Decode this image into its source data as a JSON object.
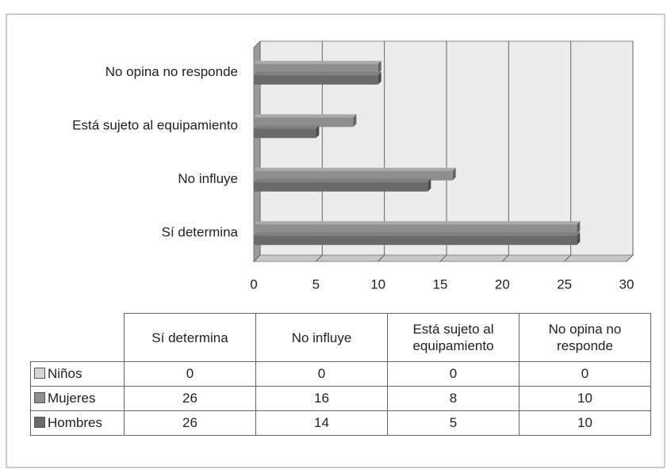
{
  "chart_data": {
    "type": "bar",
    "orientation": "horizontal",
    "categories": [
      "Sí determina",
      "No influye",
      "Está sujeto al equipamiento",
      "No opina no responde"
    ],
    "series": [
      {
        "name": "Niños",
        "color": "#d4d4d4",
        "values": [
          0,
          0,
          0,
          0
        ]
      },
      {
        "name": "Mujeres",
        "color": "#8e8e8e",
        "values": [
          26,
          16,
          8,
          10
        ]
      },
      {
        "name": "Hombres",
        "color": "#6a6a6a",
        "values": [
          26,
          14,
          5,
          10
        ]
      }
    ],
    "xlim": [
      0,
      30
    ],
    "xticks": [
      0,
      5,
      10,
      15,
      20,
      25,
      30
    ],
    "grid": true,
    "data_table": true
  }
}
